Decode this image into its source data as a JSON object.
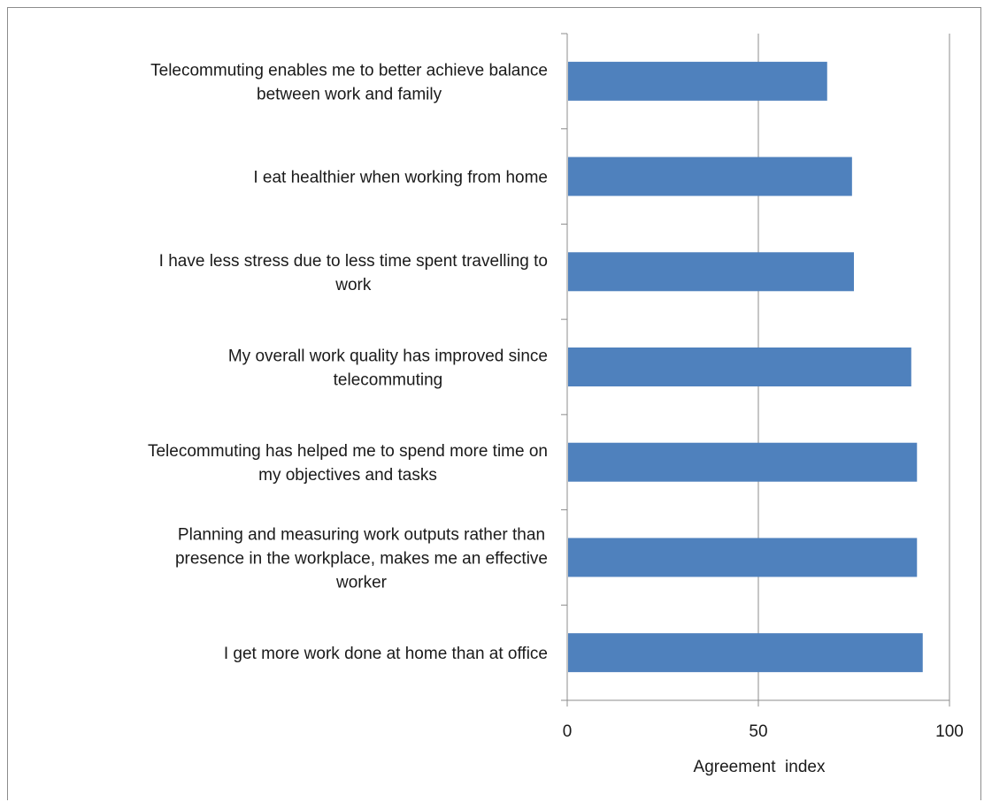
{
  "chart_data": {
    "type": "bar",
    "orientation": "horizontal",
    "xlabel": "Agreement  index",
    "ylabel": "",
    "xlim": [
      0,
      100
    ],
    "xticks": [
      "0",
      "50",
      "100"
    ],
    "grid": true,
    "legend": "none",
    "bar_color": "#4f81bd",
    "categories": [
      [
        "Telecommuting enables me to better achieve balance",
        "between work and family"
      ],
      [
        "I eat healthier when working from home"
      ],
      [
        "I have less stress due to less time spent travelling to",
        "work"
      ],
      [
        "My overall work quality has improved since",
        "telecommuting"
      ],
      [
        "Telecommuting has helped me to spend more time on",
        "my objectives and tasks"
      ],
      [
        "Planning and measuring work outputs rather than",
        "presence in the workplace, makes me an effective",
        "worker"
      ],
      [
        "I get more work done at home than at office"
      ]
    ],
    "values": [
      68,
      74.5,
      75,
      90,
      91.5,
      91.5,
      93
    ]
  }
}
